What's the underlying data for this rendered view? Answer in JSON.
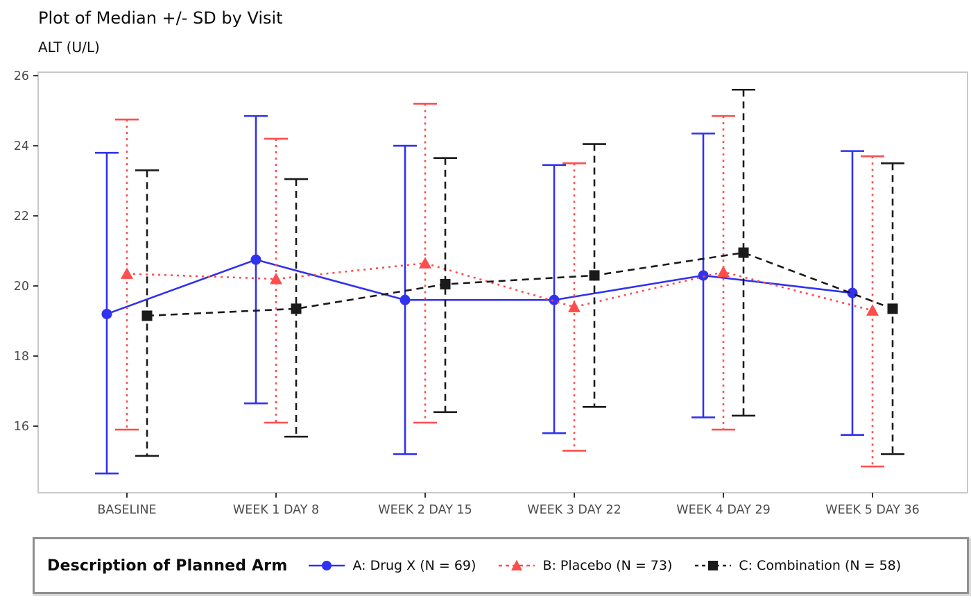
{
  "page": {
    "title": "Plot of Median +/- SD by Visit",
    "subtitle": "ALT (U/L)"
  },
  "legend": {
    "title": "Description of Planned Arm",
    "position": "bottom"
  },
  "chart_data": {
    "type": "line",
    "variant": "median_plus_minus_sd_errorbars",
    "title": "Plot of Median +/- SD by Visit",
    "ylabel": "ALT (U/L)",
    "xlabel": "",
    "grid": false,
    "legend_position": "bottom",
    "categories": [
      "BASELINE",
      "WEEK 1 DAY 8",
      "WEEK 2 DAY 15",
      "WEEK 3 DAY 22",
      "WEEK 4 DAY 29",
      "WEEK 5 DAY 36"
    ],
    "yticks": [
      16,
      18,
      20,
      22,
      24,
      26
    ],
    "ylim": [
      14.1,
      26.1
    ],
    "series": [
      {
        "name": "A: Drug X (N = 69)",
        "color": "#3131f0",
        "marker": "circle",
        "line_style": "solid",
        "median": [
          19.2,
          20.75,
          19.6,
          19.6,
          20.3,
          19.8
        ],
        "upper": [
          23.8,
          24.85,
          24.0,
          23.45,
          24.35,
          23.85
        ],
        "lower": [
          14.65,
          16.65,
          15.2,
          15.8,
          16.25,
          15.75
        ]
      },
      {
        "name": "B: Placebo (N = 73)",
        "color": "#ff4c4c",
        "marker": "triangle",
        "line_style": "dotted",
        "median": [
          20.35,
          20.2,
          20.65,
          19.4,
          20.4,
          19.3
        ],
        "upper": [
          24.75,
          24.2,
          25.2,
          23.5,
          24.85,
          23.7
        ],
        "lower": [
          15.9,
          16.1,
          16.1,
          15.3,
          15.9,
          14.85
        ]
      },
      {
        "name": "C: Combination (N = 58)",
        "color": "#1a1a1a",
        "marker": "square",
        "line_style": "dashed",
        "median": [
          19.15,
          19.35,
          20.05,
          20.3,
          20.95,
          19.35
        ],
        "upper": [
          23.3,
          23.05,
          23.65,
          24.05,
          25.6,
          23.5
        ],
        "lower": [
          15.15,
          15.7,
          16.4,
          16.55,
          16.3,
          15.2
        ]
      }
    ]
  }
}
